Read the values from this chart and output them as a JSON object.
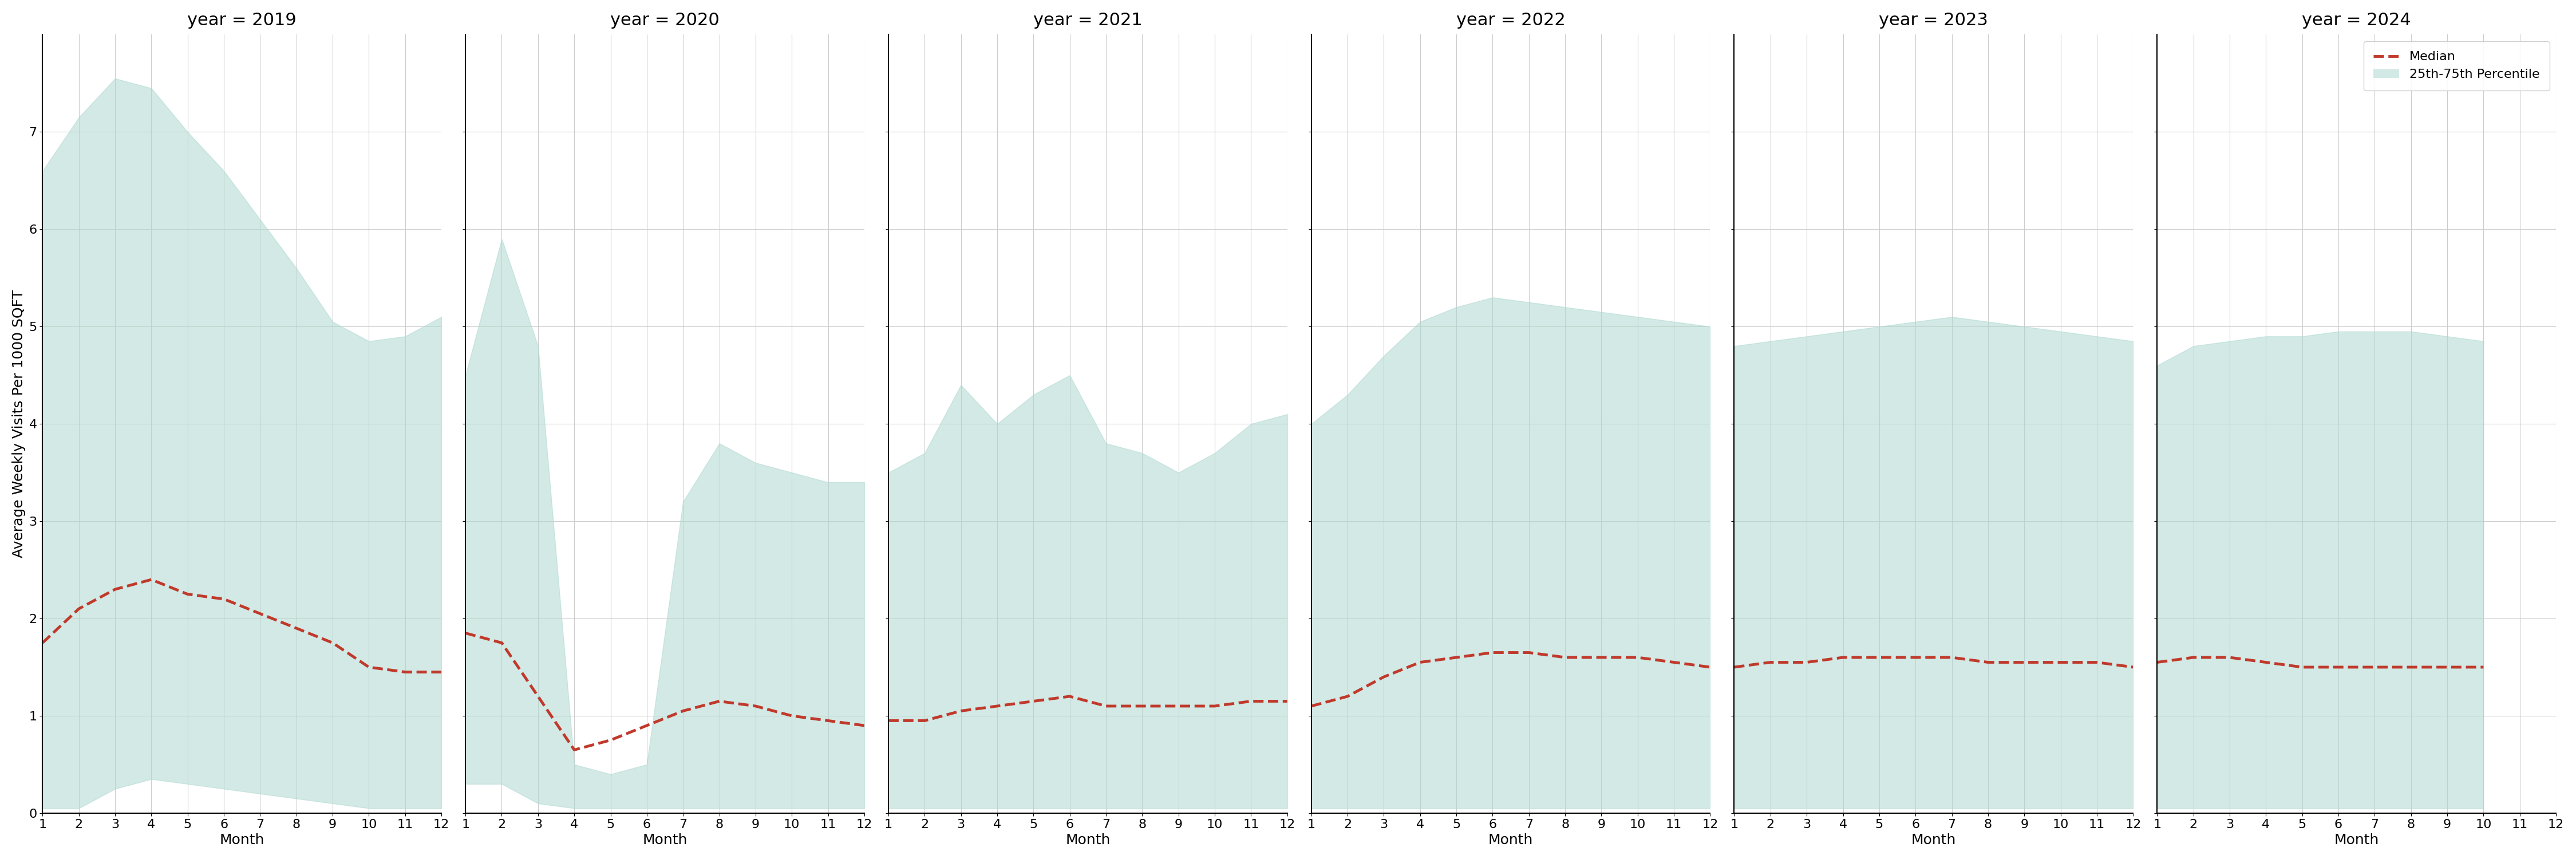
{
  "years": [
    2019,
    2020,
    2021,
    2022,
    2023,
    2024
  ],
  "months": [
    1,
    2,
    3,
    4,
    5,
    6,
    7,
    8,
    9,
    10,
    11,
    12
  ],
  "ylim": [
    0,
    8
  ],
  "yticks": [
    0,
    1,
    2,
    3,
    4,
    5,
    6,
    7
  ],
  "ylabel": "Average Weekly Visits Per 1000 SQFT",
  "xlabel": "Month",
  "fill_color": "#aed8d0",
  "fill_alpha": 0.55,
  "median_color": "#c0392b",
  "median_lw": 3.5,
  "median_ls": "--",
  "grid_color": "#cccccc",
  "bg_color": "#ffffff",
  "title_fontsize": 22,
  "label_fontsize": 18,
  "tick_fontsize": 16,
  "data": {
    "2019": {
      "median": [
        1.75,
        2.1,
        2.3,
        2.4,
        2.25,
        2.2,
        2.05,
        1.9,
        1.75,
        1.5,
        1.45,
        1.45
      ],
      "p25": [
        0.05,
        0.05,
        0.25,
        0.35,
        0.3,
        0.25,
        0.2,
        0.15,
        0.1,
        0.05,
        0.05,
        0.05
      ],
      "p75": [
        6.6,
        7.15,
        7.55,
        7.45,
        7.0,
        6.6,
        6.1,
        5.6,
        5.05,
        4.85,
        4.9,
        5.1
      ]
    },
    "2020": {
      "median": [
        1.85,
        1.75,
        1.2,
        0.65,
        0.75,
        0.9,
        1.05,
        1.15,
        1.1,
        1.0,
        0.95,
        0.9
      ],
      "p25": [
        0.3,
        0.3,
        0.1,
        0.05,
        0.05,
        0.05,
        0.05,
        0.05,
        0.05,
        0.05,
        0.05,
        0.05
      ],
      "p75": [
        4.5,
        5.9,
        4.8,
        0.5,
        0.4,
        0.5,
        3.2,
        3.8,
        3.6,
        3.5,
        3.4,
        3.4
      ]
    },
    "2021": {
      "median": [
        0.95,
        0.95,
        1.05,
        1.1,
        1.15,
        1.2,
        1.1,
        1.1,
        1.1,
        1.1,
        1.15,
        1.15
      ],
      "p25": [
        0.05,
        0.05,
        0.05,
        0.05,
        0.05,
        0.05,
        0.05,
        0.05,
        0.05,
        0.05,
        0.05,
        0.05
      ],
      "p75": [
        3.5,
        3.7,
        4.4,
        4.0,
        4.3,
        4.5,
        3.8,
        3.7,
        3.5,
        3.7,
        4.0,
        4.1
      ]
    },
    "2022": {
      "median": [
        1.1,
        1.2,
        1.4,
        1.55,
        1.6,
        1.65,
        1.65,
        1.6,
        1.6,
        1.6,
        1.55,
        1.5
      ],
      "p25": [
        0.05,
        0.05,
        0.05,
        0.05,
        0.05,
        0.05,
        0.05,
        0.05,
        0.05,
        0.05,
        0.05,
        0.05
      ],
      "p75": [
        4.0,
        4.3,
        4.7,
        5.05,
        5.2,
        5.3,
        5.25,
        5.2,
        5.15,
        5.1,
        5.05,
        5.0
      ]
    },
    "2023": {
      "median": [
        1.5,
        1.55,
        1.55,
        1.6,
        1.6,
        1.6,
        1.6,
        1.55,
        1.55,
        1.55,
        1.55,
        1.5
      ],
      "p25": [
        0.05,
        0.05,
        0.05,
        0.05,
        0.05,
        0.05,
        0.05,
        0.05,
        0.05,
        0.05,
        0.05,
        0.05
      ],
      "p75": [
        4.8,
        4.85,
        4.9,
        4.95,
        5.0,
        5.05,
        5.1,
        5.05,
        5.0,
        4.95,
        4.9,
        4.85
      ]
    },
    "2024": {
      "median": [
        1.55,
        1.6,
        1.6,
        1.55,
        1.5,
        1.5,
        1.5,
        1.5,
        1.5,
        1.5,
        null,
        null
      ],
      "p25": [
        0.05,
        0.05,
        0.05,
        0.05,
        0.05,
        0.05,
        0.05,
        0.05,
        0.05,
        0.05,
        null,
        null
      ],
      "p75": [
        4.6,
        4.8,
        4.85,
        4.9,
        4.9,
        4.95,
        4.95,
        4.95,
        4.9,
        4.85,
        null,
        null
      ]
    }
  },
  "legend_labels": [
    "Median",
    "25th-75th Percentile"
  ],
  "legend_loc": "upper right"
}
